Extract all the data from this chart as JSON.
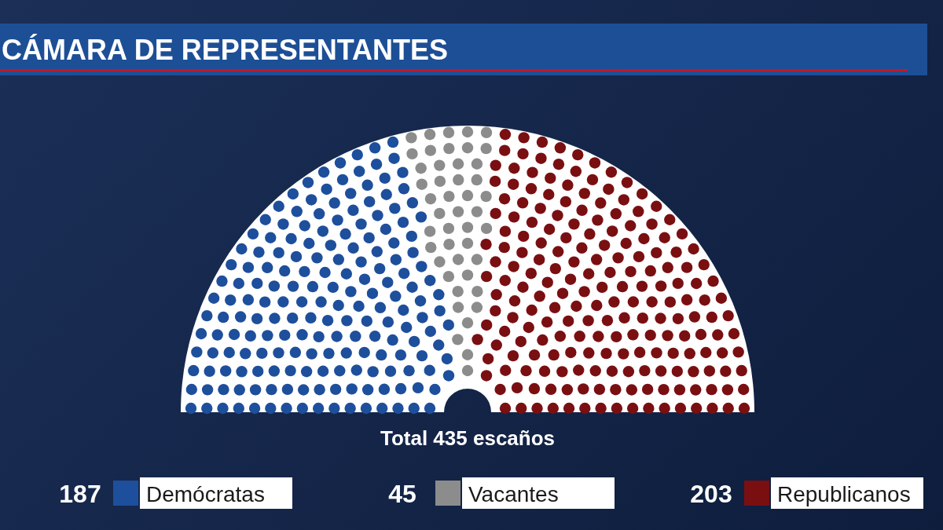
{
  "chart_data": {
    "type": "other",
    "title": "CÁMARA DE REPRESENTANTES",
    "categories": [
      "Demócratas",
      "Vacantes",
      "Republicanos"
    ],
    "values": [
      187,
      45,
      203
    ],
    "colors": [
      "#1e4f9c",
      "#8c8c8c",
      "#7a0f12"
    ],
    "annotations": [
      "Total 435 escaños"
    ],
    "data_labels": true
  }
}
